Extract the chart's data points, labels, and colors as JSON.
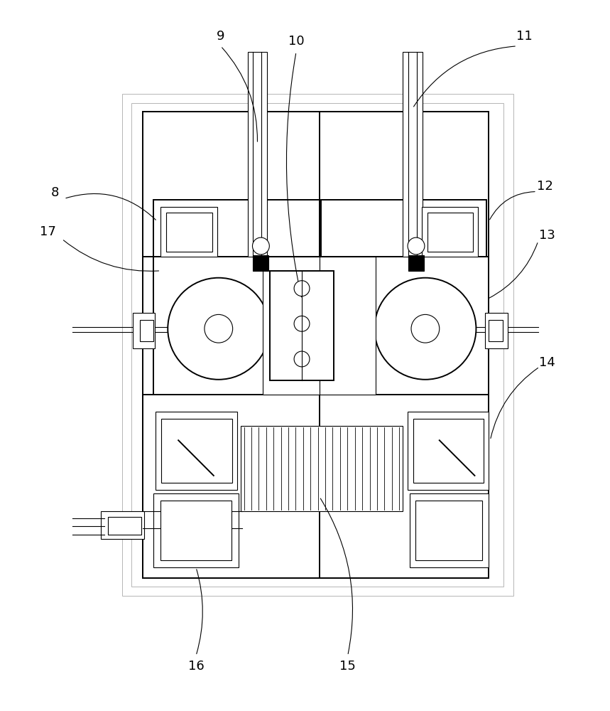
{
  "bg_color": "#ffffff",
  "line_color": "#000000",
  "gray_color": "#aaaaaa",
  "green_color": "#8fbc8f",
  "fig_width": 8.59,
  "fig_height": 10.0
}
